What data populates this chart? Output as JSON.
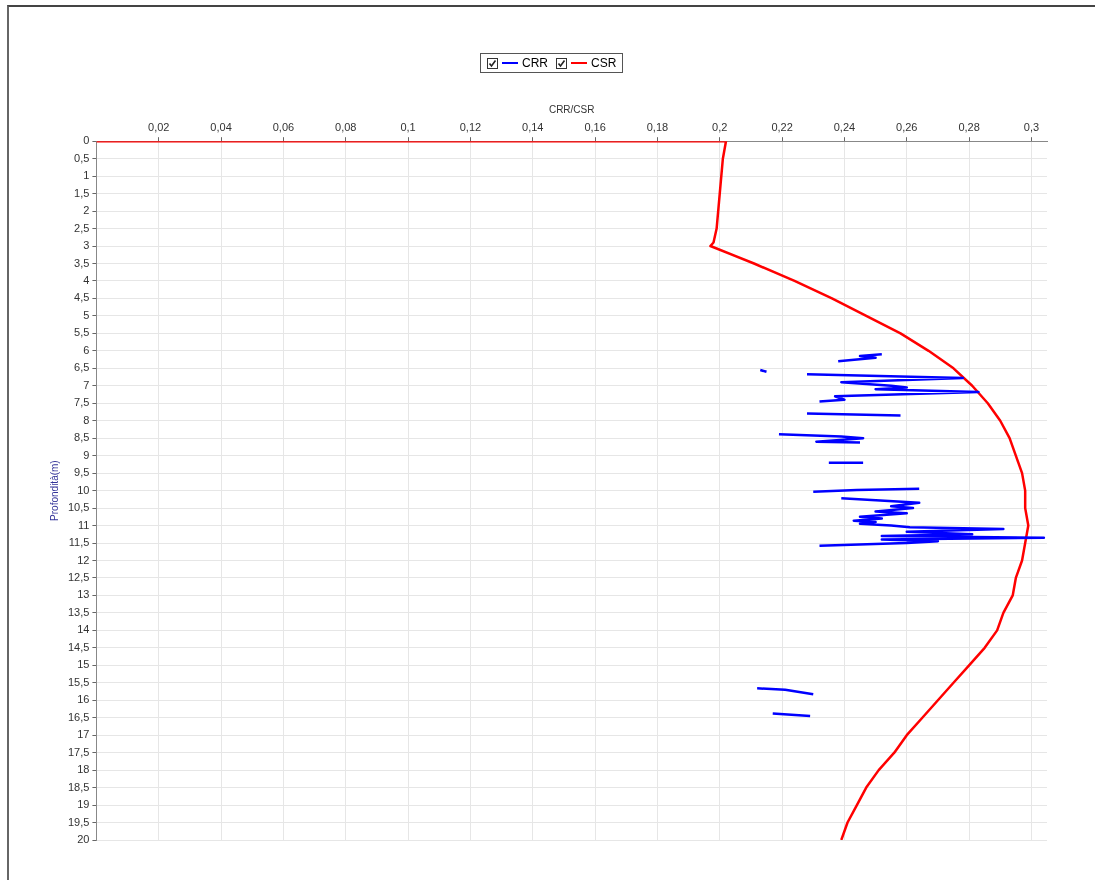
{
  "chart_data": {
    "type": "line",
    "xlabel": "CRR/CSR",
    "ylabel": "Profondità(m)",
    "xlim": [
      0,
      0.305
    ],
    "xticks": [
      {
        "value": 0.02,
        "label": "0,02"
      },
      {
        "value": 0.04,
        "label": "0,04"
      },
      {
        "value": 0.06,
        "label": "0,06"
      },
      {
        "value": 0.08,
        "label": "0,08"
      },
      {
        "value": 0.1,
        "label": "0,1"
      },
      {
        "value": 0.12,
        "label": "0,12"
      },
      {
        "value": 0.14,
        "label": "0,14"
      },
      {
        "value": 0.16,
        "label": "0,16"
      },
      {
        "value": 0.18,
        "label": "0,18"
      },
      {
        "value": 0.2,
        "label": "0,2"
      },
      {
        "value": 0.22,
        "label": "0,22"
      },
      {
        "value": 0.24,
        "label": "0,24"
      },
      {
        "value": 0.26,
        "label": "0,26"
      },
      {
        "value": 0.28,
        "label": "0,28"
      },
      {
        "value": 0.3,
        "label": "0,3"
      }
    ],
    "ylim": [
      20,
      0
    ],
    "yticks": [
      0,
      {
        "value": 0.5,
        "label": "0,5"
      },
      1,
      {
        "value": 1.5,
        "label": "1,5"
      },
      2,
      {
        "value": 2.5,
        "label": "2,5"
      },
      3,
      {
        "value": 3.5,
        "label": "3,5"
      },
      4,
      {
        "value": 4.5,
        "label": "4,5"
      },
      5,
      {
        "value": 5.5,
        "label": "5,5"
      },
      6,
      {
        "value": 6.5,
        "label": "6,5"
      },
      7,
      {
        "value": 7.5,
        "label": "7,5"
      },
      8,
      {
        "value": 8.5,
        "label": "8,5"
      },
      9,
      {
        "value": 9.5,
        "label": "9,5"
      },
      10,
      {
        "value": 10.5,
        "label": "10,5"
      },
      11,
      {
        "value": 11.5,
        "label": "11,5"
      },
      12,
      {
        "value": 12.5,
        "label": "12,5"
      },
      13,
      {
        "value": 13.5,
        "label": "13,5"
      },
      14,
      {
        "value": 14.5,
        "label": "14,5"
      },
      15,
      {
        "value": 15.5,
        "label": "15,5"
      },
      16,
      {
        "value": 16.5,
        "label": "16,5"
      },
      17,
      {
        "value": 17.5,
        "label": "17,5"
      },
      18,
      {
        "value": 18.5,
        "label": "18,5"
      },
      19,
      {
        "value": 19.5,
        "label": "19,5"
      },
      20
    ],
    "grid": true,
    "legend": "top",
    "marker": "none",
    "line_style": "solid",
    "series": [
      {
        "name": "CRR",
        "color": "#0000ff",
        "x": [
          0.252,
          0.245,
          0.25,
          0.238,
          null,
          0.213,
          0.215,
          null,
          0.228,
          0.278,
          0.239,
          0.255,
          0.26,
          0.25,
          0.283,
          0.237,
          0.24,
          0.232,
          null,
          0.228,
          0.258,
          null,
          0.219,
          0.239,
          0.246,
          0.231,
          0.245,
          null,
          0.235,
          0.246,
          null,
          0.264,
          0.244,
          0.23,
          null,
          0.239,
          0.264,
          0.255,
          0.262,
          0.25,
          0.26,
          0.245,
          0.252,
          0.243,
          0.25,
          0.245,
          0.255,
          0.261,
          0.291,
          0.26,
          0.281,
          0.252,
          0.304,
          0.252,
          0.27,
          0.26,
          0.232,
          null,
          0.212,
          0.221,
          0.23,
          null,
          0.217,
          0.229
        ],
        "values": [
          6.1,
          6.15,
          6.2,
          6.3,
          null,
          6.55,
          6.6,
          null,
          6.67,
          6.78,
          6.9,
          7.0,
          7.05,
          7.1,
          7.18,
          7.3,
          7.4,
          7.45,
          null,
          7.79,
          7.85,
          null,
          8.39,
          8.45,
          8.5,
          8.6,
          8.62,
          null,
          9.2,
          9.2,
          null,
          9.95,
          9.98,
          10.03,
          null,
          10.22,
          10.35,
          10.45,
          10.5,
          10.6,
          10.65,
          10.75,
          10.8,
          10.86,
          10.9,
          10.95,
          11.0,
          11.05,
          11.1,
          11.18,
          11.25,
          11.3,
          11.35,
          11.4,
          11.45,
          11.5,
          11.58,
          null,
          15.66,
          15.7,
          15.83,
          null,
          16.38,
          16.45
        ]
      },
      {
        "name": "CSR",
        "color": "#ff0000",
        "x": [
          0,
          0.202,
          0.201,
          0.2,
          0.199,
          0.198,
          0.197,
          0.211,
          0.224,
          0.236,
          0.247,
          0.258,
          0.267,
          0.275,
          0.281,
          0.286,
          0.29,
          0.293,
          0.295,
          0.297,
          0.298,
          0.298,
          0.299,
          0.298,
          0.297,
          0.295,
          0.294,
          0.291,
          0.289,
          0.285,
          0.28,
          0.275,
          0.27,
          0.265,
          0.26,
          0.256,
          0.251,
          0.247,
          0.244,
          0.241,
          0.239
        ],
        "values": [
          0,
          0,
          0.5,
          1.5,
          2.5,
          2.9,
          3,
          3.5,
          4,
          4.5,
          5,
          5.5,
          6,
          6.5,
          7,
          7.5,
          8,
          8.5,
          9,
          9.5,
          10,
          10.5,
          11,
          11.5,
          12,
          12.5,
          13,
          13.5,
          14,
          14.5,
          15,
          15.5,
          16,
          16.5,
          17,
          17.5,
          18,
          18.5,
          19,
          19.5,
          20
        ]
      }
    ]
  }
}
